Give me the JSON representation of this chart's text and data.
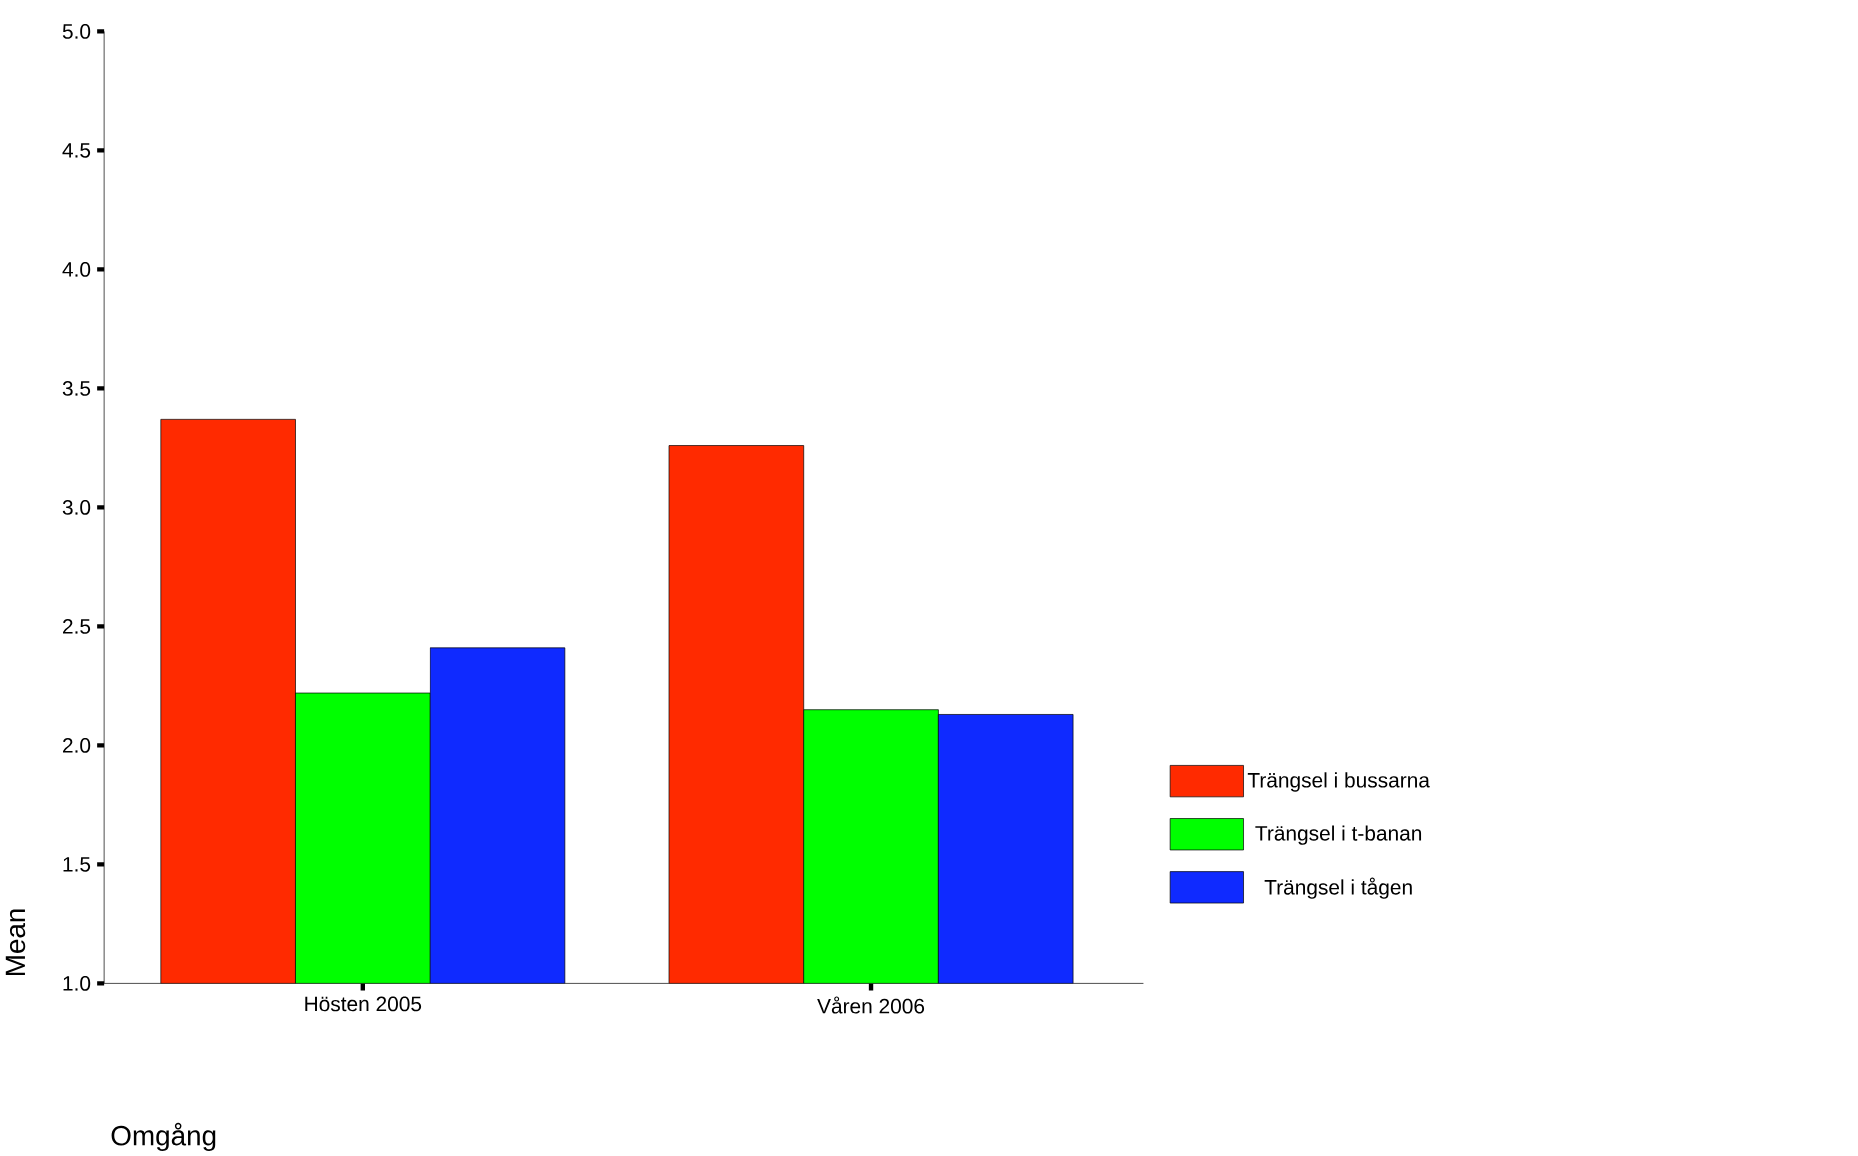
{
  "chart_data": {
    "type": "bar",
    "categories": [
      "Hösten 2005",
      "Våren 2006"
    ],
    "series": [
      {
        "name": "Trängsel i bussarna",
        "color": "#ff2a00",
        "values": [
          3.37,
          3.26
        ]
      },
      {
        "name": "Trängsel i t-banan",
        "color": "#00ff00",
        "values": [
          2.22,
          2.15
        ]
      },
      {
        "name": "Trängsel i tågen",
        "color": "#0f2aff",
        "values": [
          2.41,
          2.13
        ]
      }
    ],
    "xlabel": "Omgång",
    "ylabel": "Mean",
    "ylim": [
      1.0,
      5.0
    ],
    "yticks": [
      {
        "value": 1.0,
        "label": "1.0"
      },
      {
        "value": 1.5,
        "label": "1.5"
      },
      {
        "value": 2.0,
        "label": "2.0"
      },
      {
        "value": 2.5,
        "label": "2.5"
      },
      {
        "value": 3.0,
        "label": "3.0"
      },
      {
        "value": 3.5,
        "label": "3.5"
      },
      {
        "value": 4.0,
        "label": "4.0"
      },
      {
        "value": 4.5,
        "label": "4.5"
      },
      {
        "value": 5.0,
        "label": "5.0"
      }
    ],
    "legend": "right",
    "grid": false
  }
}
